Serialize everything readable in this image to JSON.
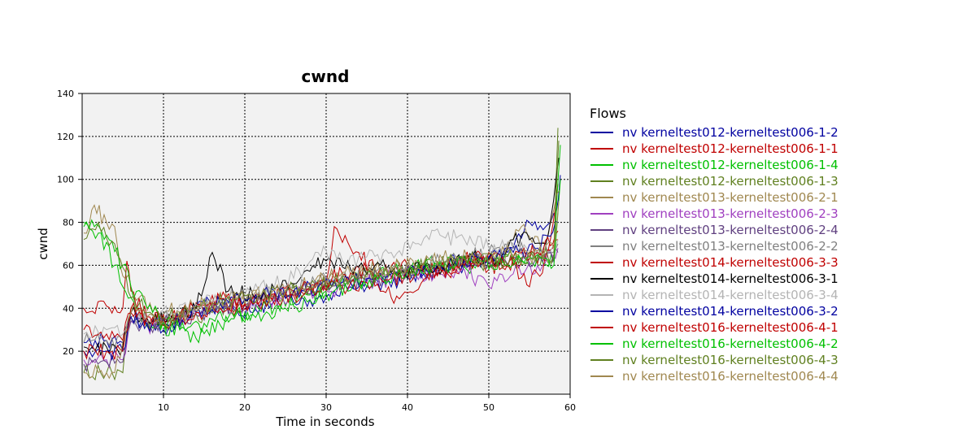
{
  "chart_data": {
    "type": "line",
    "title": "cwnd",
    "xlabel": "Time in seconds",
    "ylabel": "cwnd",
    "xlim": [
      0,
      60
    ],
    "ylim": [
      0,
      140
    ],
    "xticks": [
      10,
      20,
      30,
      40,
      50,
      60
    ],
    "yticks": [
      20,
      40,
      60,
      80,
      100,
      120,
      140
    ],
    "grid": true,
    "legend": {
      "title": "Flows",
      "placement": "right"
    },
    "series": [
      {
        "name": "nv kerneltest012-kerneltest006-1-2",
        "color": "#0000a0",
        "x": [
          0.2,
          3,
          5,
          6,
          8,
          10,
          12,
          15,
          18,
          21,
          25,
          28,
          31,
          34,
          37,
          40,
          44,
          47,
          50,
          53,
          55,
          57,
          58.3,
          58.8
        ],
        "y": [
          24,
          25,
          24,
          36,
          33,
          30,
          36,
          42,
          40,
          38,
          45,
          44,
          48,
          50,
          52,
          54,
          58,
          60,
          64,
          68,
          80,
          78,
          85,
          102
        ]
      },
      {
        "name": "nv kerneltest012-kerneltest006-1-1",
        "color": "#c00000",
        "x": [
          0.2,
          3,
          5,
          5.5,
          6,
          8,
          10,
          13,
          16,
          19,
          22,
          25,
          28,
          30,
          31,
          33,
          36,
          40,
          44,
          48,
          52,
          55,
          57,
          58.5
        ],
        "y": [
          40,
          41,
          40,
          62,
          48,
          35,
          33,
          38,
          42,
          40,
          44,
          46,
          50,
          52,
          78,
          68,
          58,
          60,
          56,
          62,
          58,
          66,
          62,
          98
        ]
      },
      {
        "name": "nv kerneltest012-kerneltest006-1-4",
        "color": "#00c000",
        "x": [
          0.2,
          2,
          4,
          5,
          6,
          7,
          9,
          12,
          15,
          18,
          21,
          24,
          27,
          30,
          33,
          36,
          40,
          44,
          48,
          52,
          55,
          58,
          58.8
        ],
        "y": [
          80,
          75,
          60,
          50,
          45,
          35,
          32,
          30,
          33,
          36,
          38,
          42,
          45,
          48,
          52,
          55,
          58,
          62,
          60,
          65,
          60,
          62,
          116
        ]
      },
      {
        "name": "nv kerneltest012-kerneltest006-1-3",
        "color": "#608020",
        "x": [
          0.2,
          3,
          5,
          6,
          8,
          10,
          13,
          16,
          19,
          22,
          25,
          28,
          31,
          34,
          37,
          40,
          43,
          46,
          49,
          52,
          55,
          58,
          58.5
        ],
        "y": [
          10,
          10,
          10,
          40,
          34,
          33,
          36,
          38,
          40,
          44,
          47,
          50,
          52,
          55,
          57,
          58,
          60,
          62,
          60,
          64,
          63,
          65,
          124
        ]
      },
      {
        "name": "nv kerneltest013-kerneltest006-2-1",
        "color": "#a08850",
        "x": [
          0.2,
          1.5,
          3,
          4,
          5,
          6,
          7,
          9,
          12,
          15,
          18,
          21,
          24,
          27,
          30,
          33,
          36,
          39,
          42,
          45,
          48,
          51,
          54,
          57,
          58.7
        ],
        "y": [
          75,
          88,
          80,
          78,
          55,
          50,
          45,
          40,
          38,
          42,
          44,
          46,
          48,
          50,
          54,
          56,
          58,
          60,
          58,
          62,
          64,
          60,
          78,
          70,
          95
        ]
      },
      {
        "name": "nv kerneltest013-kerneltest006-2-3",
        "color": "#a040c0",
        "x": [
          0.2,
          3,
          5,
          6,
          8,
          11,
          14,
          17,
          20,
          23,
          26,
          29,
          32,
          35,
          38,
          41,
          44,
          47,
          50,
          53,
          56,
          58.5
        ],
        "y": [
          16,
          16,
          16,
          34,
          32,
          34,
          38,
          40,
          42,
          44,
          46,
          48,
          50,
          52,
          54,
          56,
          56,
          58,
          50,
          56,
          60,
          68
        ]
      },
      {
        "name": "nv kerneltest013-kerneltest006-2-4",
        "color": "#604080",
        "x": [
          0.2,
          3,
          5,
          6,
          8,
          11,
          14,
          17,
          20,
          23,
          26,
          29,
          32,
          35,
          38,
          41,
          44,
          47,
          50,
          53,
          56,
          58.5
        ],
        "y": [
          14,
          15,
          15,
          34,
          32,
          34,
          37,
          40,
          42,
          46,
          48,
          50,
          52,
          53,
          55,
          57,
          58,
          60,
          62,
          64,
          62,
          66
        ]
      },
      {
        "name": "nv kerneltest013-kerneltest006-2-2",
        "color": "#808080",
        "x": [
          0.2,
          3,
          5,
          6,
          8,
          11,
          14,
          17,
          20,
          23,
          26,
          29,
          32,
          35,
          38,
          41,
          44,
          47,
          50,
          53,
          56,
          58.5
        ],
        "y": [
          24,
          25,
          25,
          36,
          34,
          36,
          40,
          42,
          44,
          48,
          50,
          52,
          54,
          56,
          58,
          60,
          62,
          64,
          66,
          68,
          64,
          70
        ]
      },
      {
        "name": "nv kerneltest014-kerneltest006-3-3",
        "color": "#c00000",
        "x": [
          0.2,
          3,
          5,
          6,
          8,
          11,
          14,
          17,
          20,
          23,
          26,
          29,
          32,
          35,
          38,
          41,
          44,
          47,
          50,
          53,
          55,
          58.5
        ],
        "y": [
          30,
          28,
          25,
          38,
          35,
          36,
          40,
          44,
          42,
          46,
          48,
          52,
          56,
          58,
          45,
          48,
          58,
          62,
          66,
          60,
          50,
          72
        ]
      },
      {
        "name": "nv kerneltest014-kerneltest006-3-1",
        "color": "#000000",
        "x": [
          0.2,
          3,
          5,
          6,
          8,
          11,
          14,
          16,
          18,
          21,
          24,
          27,
          30,
          33,
          36,
          39,
          42,
          45,
          48,
          51,
          54,
          57,
          58.6
        ],
        "y": [
          22,
          22,
          22,
          38,
          35,
          36,
          40,
          66,
          48,
          46,
          50,
          55,
          62,
          58,
          60,
          56,
          58,
          60,
          64,
          62,
          74,
          70,
          110
        ]
      },
      {
        "name": "nv kerneltest014-kerneltest006-3-4",
        "color": "#b4b4b4",
        "x": [
          0.2,
          3,
          5,
          6,
          8,
          11,
          14,
          17,
          20,
          23,
          26,
          29,
          32,
          35,
          38,
          41,
          44,
          47,
          50,
          53,
          56,
          58.5
        ],
        "y": [
          28,
          30,
          28,
          36,
          34,
          38,
          42,
          44,
          46,
          50,
          54,
          66,
          62,
          64,
          66,
          70,
          74,
          72,
          68,
          70,
          66,
          72
        ]
      },
      {
        "name": "nv kerneltest014-kerneltest006-3-2",
        "color": "#0000a0",
        "x": [
          0.2,
          3,
          5,
          6,
          8,
          11,
          14,
          17,
          20,
          23,
          26,
          29,
          32,
          35,
          38,
          41,
          44,
          47,
          50,
          53,
          56,
          58.5
        ],
        "y": [
          20,
          20,
          20,
          36,
          32,
          34,
          38,
          42,
          44,
          46,
          48,
          50,
          52,
          54,
          56,
          58,
          60,
          62,
          64,
          66,
          68,
          80
        ]
      },
      {
        "name": "nv kerneltest016-kerneltest006-4-1",
        "color": "#c00000",
        "x": [
          0.2,
          3,
          5,
          6,
          8,
          11,
          14,
          17,
          20,
          23,
          26,
          29,
          32,
          35,
          38,
          41,
          44,
          47,
          50,
          53,
          56,
          58.5
        ],
        "y": [
          20,
          20,
          20,
          40,
          36,
          34,
          38,
          40,
          42,
          44,
          46,
          48,
          50,
          52,
          54,
          56,
          58,
          60,
          62,
          64,
          66,
          76
        ]
      },
      {
        "name": "nv kerneltest016-kerneltest006-4-2",
        "color": "#00c000",
        "x": [
          0.2,
          1.5,
          3,
          5,
          6,
          8,
          10,
          12,
          14,
          17,
          20,
          22,
          25,
          28,
          31,
          34,
          37,
          40,
          43,
          46,
          49,
          52,
          55,
          58,
          58.8
        ],
        "y": [
          78,
          78,
          74,
          60,
          50,
          40,
          34,
          30,
          26,
          32,
          38,
          34,
          40,
          44,
          48,
          52,
          54,
          56,
          58,
          60,
          62,
          60,
          64,
          60,
          100
        ]
      },
      {
        "name": "nv kerneltest016-kerneltest006-4-3",
        "color": "#608020",
        "x": [
          0.2,
          2,
          4,
          6,
          8,
          10,
          13,
          16,
          19,
          22,
          25,
          28,
          31,
          34,
          37,
          40,
          43,
          46,
          49,
          52,
          55,
          58,
          58.6
        ],
        "y": [
          72,
          80,
          70,
          45,
          38,
          36,
          38,
          42,
          44,
          46,
          48,
          50,
          52,
          54,
          56,
          58,
          60,
          62,
          64,
          62,
          66,
          64,
          118
        ]
      },
      {
        "name": "nv kerneltest016-kerneltest006-4-4",
        "color": "#a08850",
        "x": [
          0.2,
          2,
          4,
          6,
          8,
          10,
          13,
          16,
          19,
          22,
          25,
          28,
          31,
          34,
          37,
          40,
          43,
          46,
          49,
          52,
          55,
          58,
          58.6
        ],
        "y": [
          10,
          10,
          10,
          38,
          36,
          34,
          38,
          42,
          44,
          46,
          48,
          52,
          54,
          56,
          58,
          60,
          62,
          64,
          62,
          66,
          64,
          68,
          90
        ]
      }
    ]
  }
}
